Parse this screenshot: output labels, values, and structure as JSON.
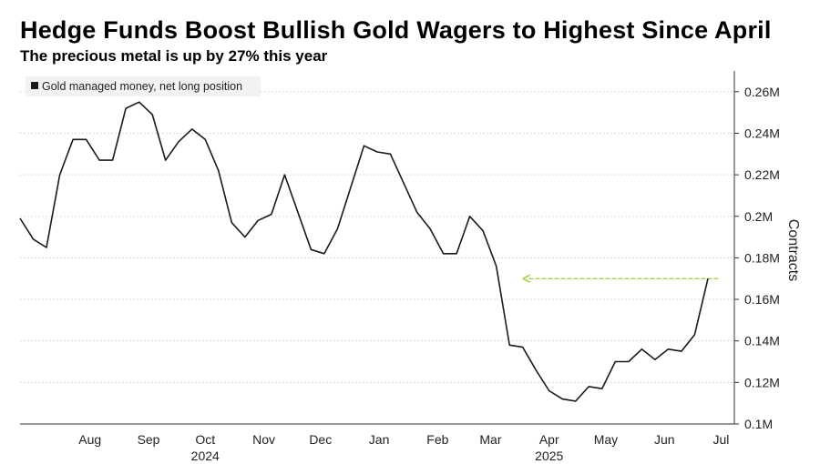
{
  "header": {
    "title": "Hedge Funds Boost Bullish Gold Wagers to Highest Since April",
    "subtitle": "The precious metal is up by 27% this year"
  },
  "colors": {
    "line": "#1a1a1a",
    "arrow": "#9acd32",
    "grid": "#cfcfcf",
    "background": "#ffffff"
  },
  "chart_data": {
    "type": "line",
    "ylabel": "Contracts",
    "ylim": [
      0.1,
      0.27
    ],
    "yticks": [
      {
        "value": 0.26,
        "label": "0.26M"
      },
      {
        "value": 0.24,
        "label": "0.24M"
      },
      {
        "value": 0.22,
        "label": "0.22M"
      },
      {
        "value": 0.2,
        "label": "0.2M"
      },
      {
        "value": 0.18,
        "label": "0.18M"
      },
      {
        "value": 0.16,
        "label": "0.16M"
      },
      {
        "value": 0.14,
        "label": "0.14M"
      },
      {
        "value": 0.12,
        "label": "0.12M"
      },
      {
        "value": 0.1,
        "label": "0.1M"
      }
    ],
    "xlim": [
      "2024-07-09",
      "2025-07-22"
    ],
    "xticks": [
      {
        "date": "2024-08-15",
        "label": "Aug"
      },
      {
        "date": "2024-09-15",
        "label": "Sep"
      },
      {
        "date": "2024-10-15",
        "label": "Oct"
      },
      {
        "date": "2024-11-15",
        "label": "Nov"
      },
      {
        "date": "2024-12-15",
        "label": "Dec"
      },
      {
        "date": "2025-01-15",
        "label": "Jan"
      },
      {
        "date": "2025-02-15",
        "label": "Feb"
      },
      {
        "date": "2025-03-15",
        "label": "Mar"
      },
      {
        "date": "2025-04-15",
        "label": "Apr"
      },
      {
        "date": "2025-05-15",
        "label": "May"
      },
      {
        "date": "2025-06-15",
        "label": "Jun"
      },
      {
        "date": "2025-07-15",
        "label": "Jul"
      }
    ],
    "year_labels": [
      {
        "date": "2024-10-15",
        "label": "2024"
      },
      {
        "date": "2025-04-15",
        "label": "2025"
      }
    ],
    "grid": "horizontal dotted",
    "legend_position": "top-left",
    "series": [
      {
        "name": "Gold managed money, net long position",
        "x": [
          "2024-07-09",
          "2024-07-16",
          "2024-07-23",
          "2024-07-30",
          "2024-08-06",
          "2024-08-13",
          "2024-08-20",
          "2024-08-27",
          "2024-09-03",
          "2024-09-10",
          "2024-09-17",
          "2024-09-24",
          "2024-10-01",
          "2024-10-08",
          "2024-10-15",
          "2024-10-22",
          "2024-10-29",
          "2024-11-05",
          "2024-11-12",
          "2024-11-19",
          "2024-11-26",
          "2024-12-03",
          "2024-12-10",
          "2024-12-17",
          "2024-12-24",
          "2024-12-31",
          "2025-01-07",
          "2025-01-14",
          "2025-01-21",
          "2025-01-28",
          "2025-02-04",
          "2025-02-11",
          "2025-02-18",
          "2025-02-25",
          "2025-03-04",
          "2025-03-11",
          "2025-03-18",
          "2025-03-25",
          "2025-04-01",
          "2025-04-08",
          "2025-04-15",
          "2025-04-22",
          "2025-04-29",
          "2025-05-06",
          "2025-05-13",
          "2025-05-20",
          "2025-05-27",
          "2025-06-03",
          "2025-06-10",
          "2025-06-17",
          "2025-06-24",
          "2025-07-01",
          "2025-07-08",
          "2025-07-15",
          "2025-07-22"
        ],
        "values": [
          0.199,
          0.189,
          0.185,
          0.22,
          0.237,
          0.237,
          0.227,
          0.227,
          0.252,
          0.255,
          0.249,
          0.227,
          0.236,
          0.242,
          0.237,
          0.222,
          0.197,
          0.19,
          0.198,
          0.201,
          0.22,
          0.202,
          0.184,
          0.182,
          0.194,
          0.214,
          0.234,
          0.231,
          0.23,
          0.216,
          0.202,
          0.194,
          0.182,
          0.182,
          0.2,
          0.193,
          0.176,
          0.138,
          0.137,
          0.126,
          0.116,
          0.112,
          0.111,
          0.118,
          0.117,
          0.13,
          0.13,
          0.136,
          0.131,
          0.136,
          0.135,
          0.143,
          0.17,
          0.17,
          0.17
        ]
      }
    ],
    "annotations": [
      {
        "type": "arrow",
        "from_date": "2025-07-15",
        "to_date": "2025-04-01",
        "value": 0.17
      }
    ]
  }
}
